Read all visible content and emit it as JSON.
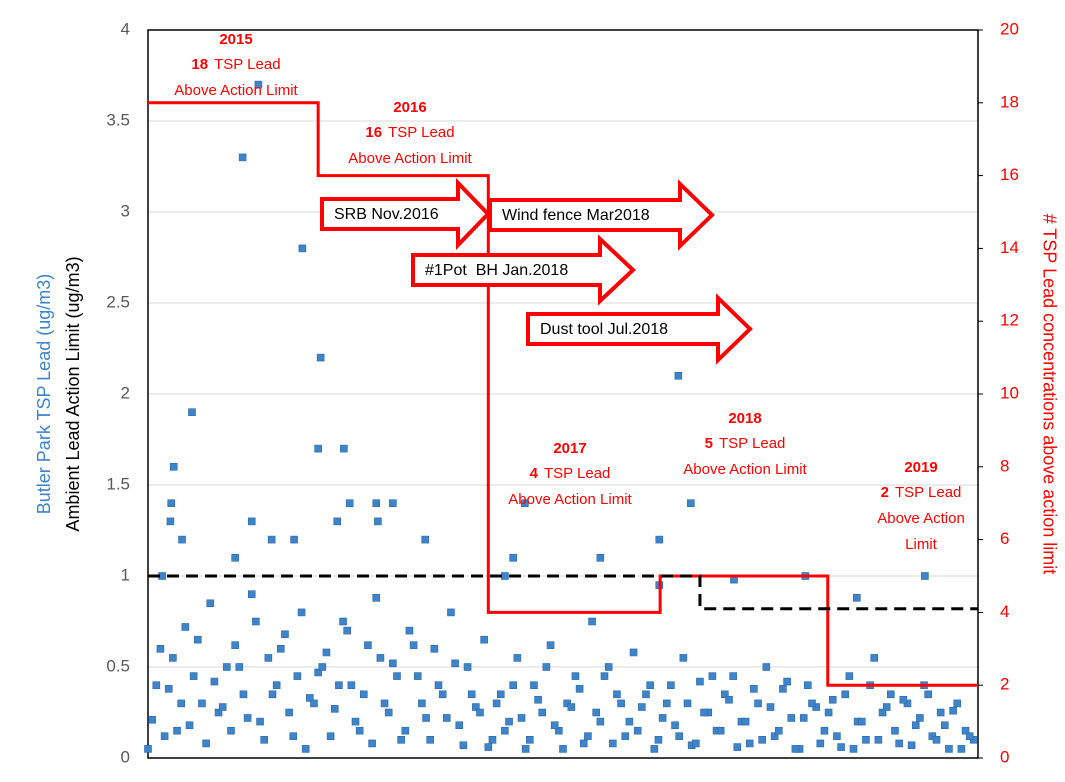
{
  "chart_data": {
    "type": "scatter",
    "y_label_1": "Butler Park TSP Lead (ug/m3)",
    "y_label_2": "Ambient Lead Action Limit (ug/m3)",
    "y2_label": "# TSP Lead concentrations above action limit",
    "ylim": [
      0,
      4
    ],
    "yticks": [
      0,
      0.5,
      1,
      1.5,
      2,
      2.5,
      3,
      3.5,
      4
    ],
    "y2lim": [
      0,
      20
    ],
    "y2ticks": [
      0,
      2,
      4,
      6,
      8,
      10,
      12,
      14,
      16,
      18,
      20
    ],
    "xlim": [
      0,
      100
    ],
    "grid": true,
    "points": {
      "color": "#3f83c8",
      "x": [
        13.3,
        11.4,
        18.6,
        20.8,
        5.3,
        63.9,
        3.1,
        20.5,
        23.6,
        2.8,
        2.7,
        4.1,
        12.5,
        24.3,
        27.5,
        29.5,
        22.8,
        27.7,
        33.4,
        14.9,
        17.6,
        10.5,
        44,
        54.5,
        61.6,
        45.4,
        65.4,
        43,
        61.6,
        79.2,
        93.6,
        85.4,
        70.6,
        1.7,
        0.5,
        1.5,
        2.5,
        3.5,
        4.5,
        5.5,
        6.5,
        7.5,
        8.5,
        9.5,
        10.5,
        11.5,
        12.5,
        13.5,
        14.5,
        15.5,
        16.5,
        17.5,
        18.5,
        19.5,
        20.5,
        21.5,
        22.5,
        23.5,
        24.5,
        25.5,
        26.5,
        27.5,
        28.5,
        29.5,
        30.5,
        31.5,
        32.5,
        33.5,
        34.5,
        35.5,
        36.5,
        37.5,
        38.5,
        39.5,
        40.5,
        41.5,
        42.5,
        43.5,
        44.5,
        45.5,
        46.5,
        47.5,
        48.5,
        49.5,
        50.5,
        51.5,
        52.5,
        53.5,
        54.5,
        55.5,
        56.5,
        57.5,
        58.5,
        59.5,
        60.5,
        61.5,
        62.5,
        63.5,
        64.5,
        65.5,
        66.5,
        67.5,
        68.5,
        69.5,
        70.5,
        71.5,
        72.5,
        73.5,
        74.5,
        75.5,
        76.5,
        77.5,
        78.5,
        79.5,
        80.5,
        81.5,
        82.5,
        83.5,
        84.5,
        85.5,
        86.5,
        87.5,
        88.5,
        89.5,
        90.5,
        91.5,
        92.5,
        93.5,
        94.5,
        95.5,
        96.5,
        97.5,
        98.5,
        99.5,
        0,
        1,
        2,
        3,
        4,
        5,
        6,
        7,
        8,
        9,
        10,
        11,
        12,
        13,
        14,
        15,
        16,
        17,
        18,
        19,
        20,
        21,
        22,
        23,
        24,
        25,
        26,
        27,
        28,
        29,
        30,
        31,
        32,
        33,
        34,
        35,
        36,
        37,
        38,
        39,
        40,
        41,
        42,
        43,
        44,
        45,
        46,
        47,
        48,
        49,
        50,
        51,
        52,
        53,
        54,
        55,
        56,
        57,
        58,
        59,
        60,
        61,
        62,
        63,
        64,
        65,
        66,
        67,
        68,
        69,
        70,
        71,
        72,
        73,
        74,
        75,
        76,
        77,
        78,
        79,
        80,
        81,
        82,
        83,
        84,
        85,
        86,
        87,
        88,
        89,
        90,
        91,
        92,
        93,
        94,
        95,
        96,
        97,
        98,
        99
      ],
      "values": [
        3.7,
        3.3,
        2.8,
        2.2,
        1.9,
        2.1,
        1.6,
        1.7,
        1.7,
        1.4,
        1.3,
        1.2,
        1.3,
        1.4,
        1.4,
        1.4,
        1.3,
        1.3,
        1.2,
        1.2,
        1.2,
        1.1,
        1.1,
        1.1,
        1.2,
        1.4,
        1.4,
        1.0,
        0.95,
        1.0,
        1.0,
        0.88,
        0.98,
        1.0,
        0.21,
        0.6,
        0.38,
        0.15,
        0.72,
        0.45,
        0.3,
        0.85,
        0.25,
        0.5,
        0.62,
        0.35,
        0.9,
        0.2,
        0.55,
        0.4,
        0.68,
        0.12,
        0.8,
        0.33,
        0.47,
        0.58,
        0.27,
        0.75,
        0.4,
        0.15,
        0.62,
        0.88,
        0.3,
        0.52,
        0.1,
        0.7,
        0.45,
        0.22,
        0.6,
        0.35,
        0.8,
        0.18,
        0.5,
        0.28,
        0.65,
        0.1,
        0.35,
        0.2,
        0.55,
        0.05,
        0.4,
        0.25,
        0.62,
        0.15,
        0.3,
        0.45,
        0.08,
        0.75,
        0.2,
        0.5,
        0.35,
        0.12,
        0.58,
        0.28,
        0.4,
        0.1,
        0.3,
        0.18,
        0.55,
        0.07,
        0.42,
        0.25,
        0.15,
        0.35,
        0.45,
        0.2,
        0.08,
        0.3,
        0.5,
        0.12,
        0.38,
        0.22,
        0.05,
        0.4,
        0.28,
        0.15,
        0.32,
        0.06,
        0.45,
        0.2,
        0.1,
        0.55,
        0.25,
        0.35,
        0.08,
        0.3,
        0.18,
        0.4,
        0.12,
        0.25,
        0.05,
        0.3,
        0.15,
        0.1,
        0.05,
        0.4,
        0.12,
        0.55,
        0.3,
        0.18,
        0.65,
        0.08,
        0.42,
        0.28,
        0.15,
        0.5,
        0.22,
        0.75,
        0.1,
        0.35,
        0.6,
        0.25,
        0.45,
        0.05,
        0.3,
        0.5,
        0.12,
        0.4,
        0.7,
        0.2,
        0.35,
        0.08,
        0.55,
        0.25,
        0.45,
        0.15,
        0.62,
        0.3,
        0.1,
        0.4,
        0.22,
        0.52,
        0.07,
        0.35,
        0.25,
        0.06,
        0.3,
        0.15,
        0.4,
        0.22,
        0.1,
        0.32,
        0.5,
        0.18,
        0.05,
        0.28,
        0.38,
        0.12,
        0.25,
        0.45,
        0.08,
        0.3,
        0.2,
        0.15,
        0.35,
        0.05,
        0.22,
        0.4,
        0.12,
        0.3,
        0.08,
        0.25,
        0.45,
        0.15,
        0.32,
        0.06,
        0.2,
        0.38,
        0.1,
        0.28,
        0.15,
        0.42,
        0.05,
        0.22,
        0.3,
        0.08,
        0.25,
        0.12,
        0.35,
        0.05,
        0.2,
        0.4,
        0.1,
        0.28,
        0.15,
        0.32,
        0.07,
        0.22,
        0.35,
        0.1,
        0.18,
        0.26,
        0.05,
        0.12
      ]
    },
    "lines": [
      {
        "color": "#ff0000",
        "axis": "y2",
        "dashed": false,
        "x": [
          0,
          20.5,
          20.5,
          41,
          41,
          61.7,
          61.7,
          81.9,
          81.9,
          100
        ],
        "values": [
          18,
          18,
          16,
          16,
          4,
          4,
          5,
          5,
          2,
          2
        ]
      },
      {
        "color": "#000000",
        "axis": "y",
        "dashed": true,
        "x": [
          0,
          66.5,
          66.5,
          100
        ],
        "values": [
          1,
          1,
          0.82,
          0.82
        ]
      }
    ],
    "annotations": [
      {
        "year": "2015",
        "count": 18,
        "lines": [
          "TSP Lead",
          "Above Action Limit"
        ]
      },
      {
        "year": "2016",
        "count": 16,
        "lines": [
          "TSP Lead",
          "Above Action Limit"
        ]
      },
      {
        "year": "2017",
        "count": 4,
        "lines": [
          "TSP Lead",
          "Above Action Limit"
        ]
      },
      {
        "year": "2018",
        "count": 5,
        "lines": [
          "TSP Lead",
          "Above Action Limit"
        ]
      },
      {
        "year": "2019",
        "count": 2,
        "lines": [
          "TSP Lead",
          "Above Action",
          "Limit"
        ]
      }
    ],
    "arrows": [
      "SRB Nov.2016",
      "Wind fence Mar2018",
      "#1Pot  BH Jan.2018",
      "Dust tool Jul.2018"
    ]
  }
}
